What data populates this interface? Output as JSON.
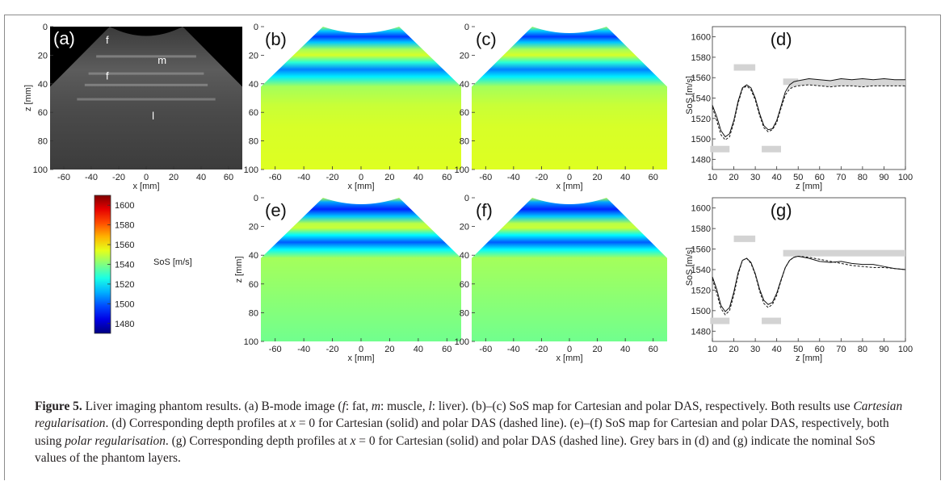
{
  "figure": {
    "panel_labels": [
      "(a)",
      "(b)",
      "(c)",
      "(d)",
      "(e)",
      "(f)",
      "(g)"
    ],
    "bmode_layer_labels": [
      "f",
      "m",
      "f",
      "l"
    ],
    "colorbar": {
      "label": "SoS [m/s]",
      "ticks": [
        "1600",
        "1580",
        "1560",
        "1540",
        "1520",
        "1500",
        "1480"
      ],
      "min": 1470,
      "max": 1610
    },
    "map_axes": {
      "x_ticks": [
        "-60",
        "-40",
        "-20",
        "0",
        "20",
        "40",
        "60"
      ],
      "y_ticks": [
        "0",
        "20",
        "40",
        "60",
        "80",
        "100"
      ],
      "x_label": "x [mm]",
      "y_label": "z [mm]"
    },
    "profile_axes": {
      "x_ticks": [
        "10",
        "20",
        "30",
        "40",
        "50",
        "60",
        "70",
        "80",
        "90",
        "100"
      ],
      "y_ticks": [
        "1600",
        "1580",
        "1560",
        "1540",
        "1520",
        "1500",
        "1480"
      ],
      "x_label": "z [mm]",
      "y_label": "SoS [m/s]"
    },
    "colors": {
      "nominal_bar": "#d3d3d3",
      "band_fill": "#d6d6d6",
      "line": "#111111"
    }
  },
  "chart_data": [
    {
      "type": "line",
      "panel": "(d)",
      "xlabel": "z [mm]",
      "ylabel": "SoS [m/s]",
      "xlim": [
        10,
        100
      ],
      "ylim": [
        1470,
        1610
      ],
      "x": [
        10,
        12,
        14,
        16,
        18,
        20,
        22,
        24,
        26,
        28,
        30,
        32,
        34,
        36,
        38,
        40,
        42,
        44,
        46,
        48,
        50,
        55,
        60,
        65,
        70,
        75,
        80,
        85,
        90,
        95,
        100
      ],
      "series": [
        {
          "style": "solid",
          "values": [
            1533,
            1522,
            1508,
            1502,
            1505,
            1518,
            1537,
            1550,
            1553,
            1550,
            1540,
            1525,
            1513,
            1509,
            1510,
            1518,
            1532,
            1546,
            1553,
            1556,
            1557,
            1559,
            1558,
            1557,
            1559,
            1558,
            1559,
            1558,
            1559,
            1558,
            1558
          ]
        },
        {
          "style": "dashed",
          "values": [
            1531,
            1518,
            1504,
            1499,
            1502,
            1516,
            1535,
            1549,
            1552,
            1548,
            1538,
            1523,
            1511,
            1507,
            1509,
            1516,
            1530,
            1543,
            1549,
            1551,
            1552,
            1553,
            1552,
            1551,
            1552,
            1552,
            1551,
            1552,
            1552,
            1552,
            1552
          ]
        }
      ],
      "nominal_bars": [
        {
          "from": 20,
          "to": 30,
          "value": 1570
        },
        {
          "from": 9,
          "to": 18,
          "value": 1490
        },
        {
          "from": 33,
          "to": 42,
          "value": 1490
        },
        {
          "from": 43,
          "to": 50,
          "value": 1556
        }
      ]
    },
    {
      "type": "line",
      "panel": "(g)",
      "xlabel": "z [mm]",
      "ylabel": "SoS [m/s]",
      "xlim": [
        10,
        100
      ],
      "ylim": [
        1470,
        1610
      ],
      "x": [
        10,
        12,
        14,
        16,
        18,
        20,
        22,
        24,
        26,
        28,
        30,
        32,
        34,
        36,
        38,
        40,
        42,
        44,
        46,
        48,
        50,
        55,
        60,
        65,
        70,
        75,
        80,
        85,
        90,
        95,
        100
      ],
      "series": [
        {
          "style": "solid",
          "values": [
            1533,
            1521,
            1505,
            1499,
            1503,
            1518,
            1537,
            1549,
            1551,
            1547,
            1536,
            1521,
            1510,
            1506,
            1508,
            1517,
            1530,
            1542,
            1549,
            1552,
            1553,
            1551,
            1548,
            1547,
            1548,
            1546,
            1545,
            1545,
            1543,
            1541,
            1540
          ]
        },
        {
          "style": "dashed",
          "values": [
            1531,
            1517,
            1502,
            1496,
            1500,
            1515,
            1535,
            1549,
            1551,
            1546,
            1535,
            1519,
            1507,
            1503,
            1506,
            1515,
            1529,
            1542,
            1549,
            1552,
            1553,
            1552,
            1550,
            1548,
            1546,
            1544,
            1543,
            1542,
            1542,
            1541,
            1540
          ]
        }
      ],
      "nominal_bars": [
        {
          "from": 20,
          "to": 30,
          "value": 1570
        },
        {
          "from": 9,
          "to": 18,
          "value": 1490
        },
        {
          "from": 33,
          "to": 42,
          "value": 1490
        },
        {
          "from": 43,
          "to": 100,
          "value": 1556
        }
      ]
    }
  ],
  "caption": {
    "label": "Figure 5.",
    "s1": " Liver imaging phantom results. (a) B-mode image (",
    "f": "f",
    "s2": ": fat, ",
    "m": "m",
    "s3": ": muscle, ",
    "l": "l",
    "s4": ": liver). (b)–(c) SoS map for Cartesian and polar DAS, respectively. Both results use ",
    "cart_reg": "Cartesian regularisation",
    "s5": ". (d) Corresponding depth profiles at ",
    "x1": "x",
    "eq1": " = 0",
    "s6": " for Cartesian (solid) and polar DAS (dashed line). (e)–(f) SoS map for Cartesian and polar DAS, respectively, both using ",
    "polar_reg": "polar regularisation",
    "s7": ". (g) Corresponding depth profiles at ",
    "x2": "x",
    "eq2": " = 0",
    "s8": " for Cartesian (solid) and polar DAS (dashed line). Grey bars in (d) and (g) indicate the nominal SoS values of the phantom layers."
  }
}
